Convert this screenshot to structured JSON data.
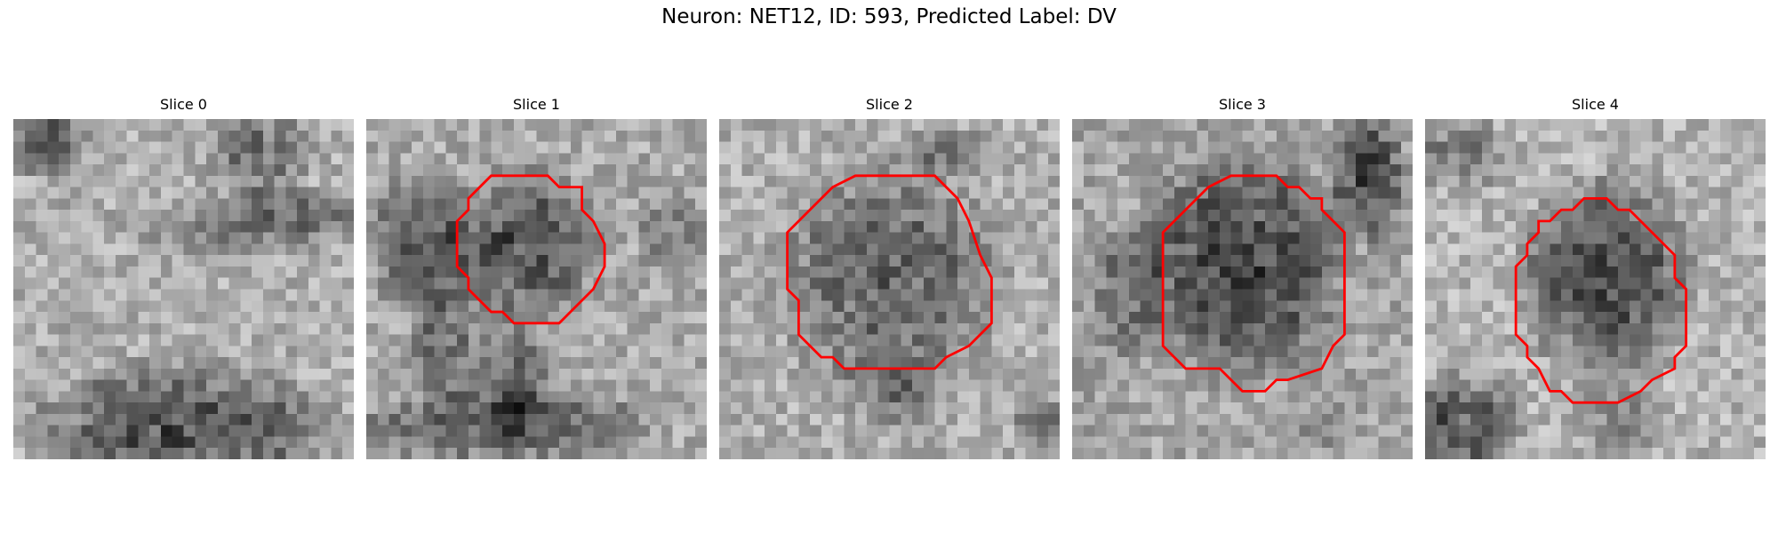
{
  "figure": {
    "title": "Neuron: NET12, ID: 593, Predicted Label: DV",
    "contour_color": "#ff0000"
  },
  "slices": [
    {
      "title": "Slice 0",
      "has_contour": false
    },
    {
      "title": "Slice 1",
      "has_contour": true
    },
    {
      "title": "Slice 2",
      "has_contour": true
    },
    {
      "title": "Slice 3",
      "has_contour": true
    },
    {
      "title": "Slice 4",
      "has_contour": true
    }
  ]
}
